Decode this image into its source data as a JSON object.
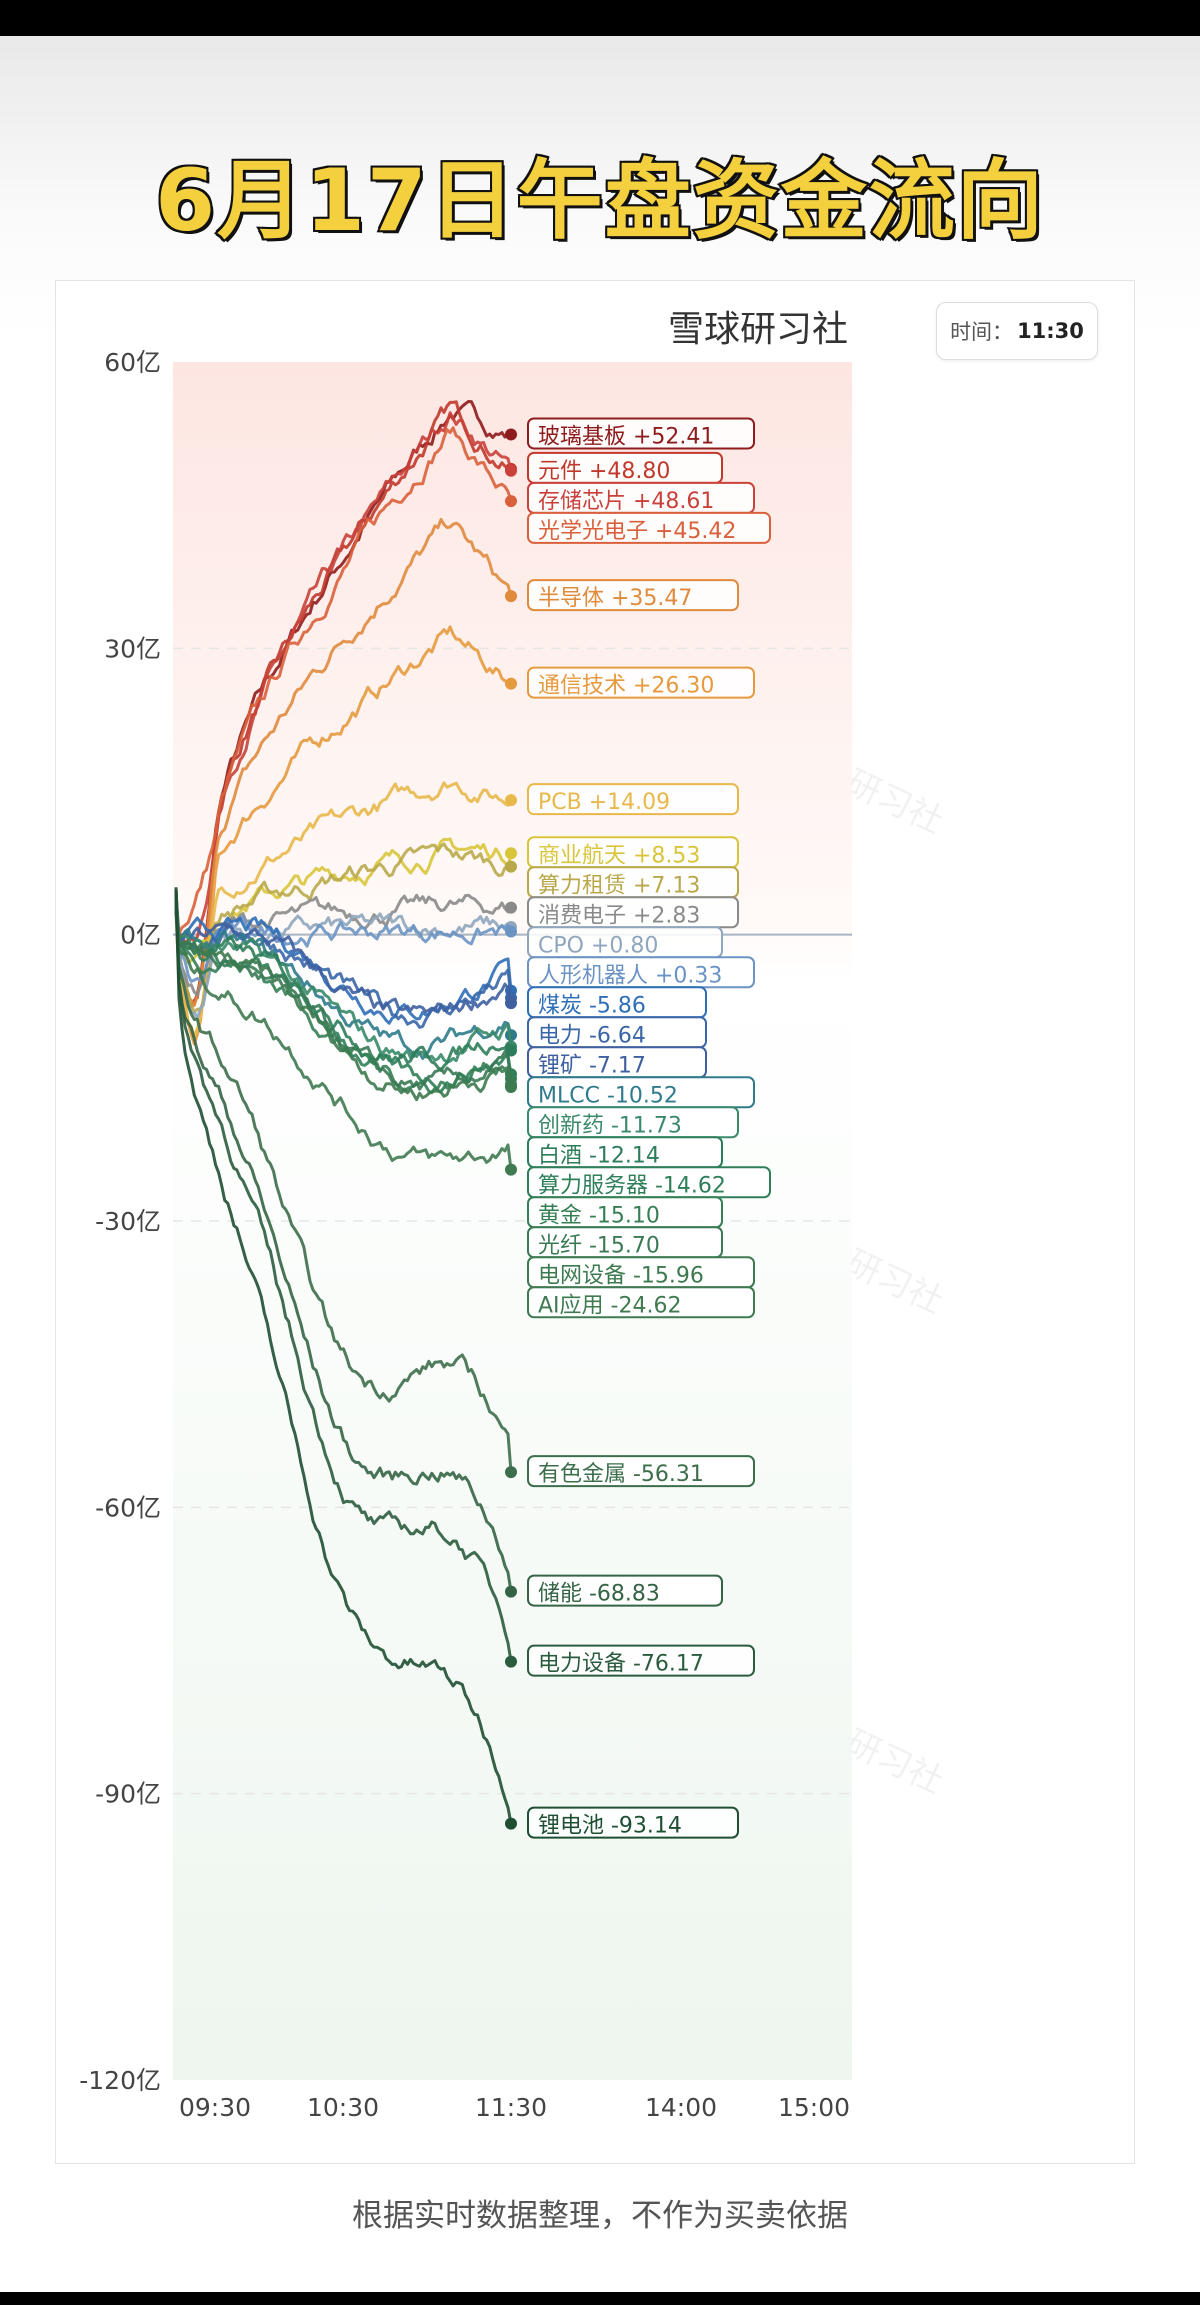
{
  "header": {
    "title": "6月17日午盘资金流向"
  },
  "brand": "雪球研习社",
  "time": {
    "label": "时间：",
    "value": "11:30"
  },
  "footer": "根据实时数据整理，不作为买卖依据",
  "watermark": "雪球研习社",
  "chart_data": {
    "type": "line",
    "title": "",
    "xlabel": "",
    "ylabel": "",
    "unit": "亿",
    "x_ticks": [
      "09:30",
      "10:30",
      "11:30",
      "14:00",
      "15:00"
    ],
    "y_ticks": [
      "60亿",
      "30亿",
      "0亿",
      "-30亿",
      "-60亿",
      "-90亿",
      "-120亿"
    ],
    "ylim": [
      -120,
      60
    ],
    "grid": true,
    "current_time": "11:30",
    "series": [
      {
        "name": "玻璃基板",
        "value": 52.41,
        "label": "玻璃基板  +52.41",
        "color": "#8e1c1c"
      },
      {
        "name": "元件",
        "value": 48.8,
        "label": "元件  +48.80",
        "color": "#c0392b"
      },
      {
        "name": "存储芯片",
        "value": 48.61,
        "label": "存储芯片  +48.61",
        "color": "#c9413a"
      },
      {
        "name": "光学光电子",
        "value": 45.42,
        "label": "光学光电子  +45.42",
        "color": "#d9603b"
      },
      {
        "name": "半导体",
        "value": 35.47,
        "label": "半导体  +35.47",
        "color": "#e08a3c"
      },
      {
        "name": "通信技术",
        "value": 26.3,
        "label": "通信技术  +26.30",
        "color": "#e59a3e"
      },
      {
        "name": "PCB",
        "value": 14.09,
        "label": "PCB  +14.09",
        "color": "#e8b84a"
      },
      {
        "name": "商业航天",
        "value": 8.53,
        "label": "商业航天  +8.53",
        "color": "#d8c53a"
      },
      {
        "name": "算力租赁",
        "value": 7.13,
        "label": "算力租赁  +7.13",
        "color": "#b9a84a"
      },
      {
        "name": "消费电子",
        "value": 2.83,
        "label": "消费电子  +2.83",
        "color": "#8a8a8a"
      },
      {
        "name": "CPO",
        "value": 0.8,
        "label": "CPO  +0.80",
        "color": "#8fa6bd"
      },
      {
        "name": "人形机器人",
        "value": 0.33,
        "label": "人形机器人  +0.33",
        "color": "#6b93c4"
      },
      {
        "name": "煤炭",
        "value": -5.86,
        "label": "煤炭  -5.86",
        "color": "#2f6fb8"
      },
      {
        "name": "电力",
        "value": -6.64,
        "label": "电力  -6.64",
        "color": "#3a66a8"
      },
      {
        "name": "锂矿",
        "value": -7.17,
        "label": "锂矿  -7.17",
        "color": "#3f5fa0"
      },
      {
        "name": "MLCC",
        "value": -10.52,
        "label": "MLCC  -10.52",
        "color": "#2f7b8c"
      },
      {
        "name": "创新药",
        "value": -11.73,
        "label": "创新药  -11.73",
        "color": "#3a8a6a"
      },
      {
        "name": "白酒",
        "value": -12.14,
        "label": "白酒  -12.14",
        "color": "#2e7d5a"
      },
      {
        "name": "算力服务器",
        "value": -14.62,
        "label": "算力服务器  -14.62",
        "color": "#2f7f5a"
      },
      {
        "name": "黄金",
        "value": -15.1,
        "label": "黄金  -15.10",
        "color": "#357f55"
      },
      {
        "name": "光纤",
        "value": -15.7,
        "label": "光纤  -15.70",
        "color": "#3a7a55"
      },
      {
        "name": "电网设备",
        "value": -15.96,
        "label": "电网设备  -15.96",
        "color": "#3d7a4f"
      },
      {
        "name": "AI应用",
        "value": -24.62,
        "label": "AI应用  -24.62",
        "color": "#3f7a50"
      },
      {
        "name": "有色金属",
        "value": -56.31,
        "label": "有色金属  -56.31",
        "color": "#3d6e4b"
      },
      {
        "name": "储能",
        "value": -68.83,
        "label": "储能  -68.83",
        "color": "#346445"
      },
      {
        "name": "电力设备",
        "value": -76.17,
        "label": "电力设备  -76.17",
        "color": "#2b5c3e"
      },
      {
        "name": "锂电池",
        "value": -93.14,
        "label": "锂电池  -93.14",
        "color": "#1f4f33"
      }
    ]
  }
}
